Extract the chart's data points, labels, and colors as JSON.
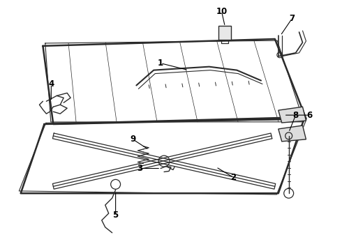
{
  "background": "#ffffff",
  "line_color": "#2a2a2a",
  "text_color": "#000000",
  "label_fontsize": 8.5,
  "figsize": [
    4.9,
    3.6
  ],
  "dpi": 100
}
